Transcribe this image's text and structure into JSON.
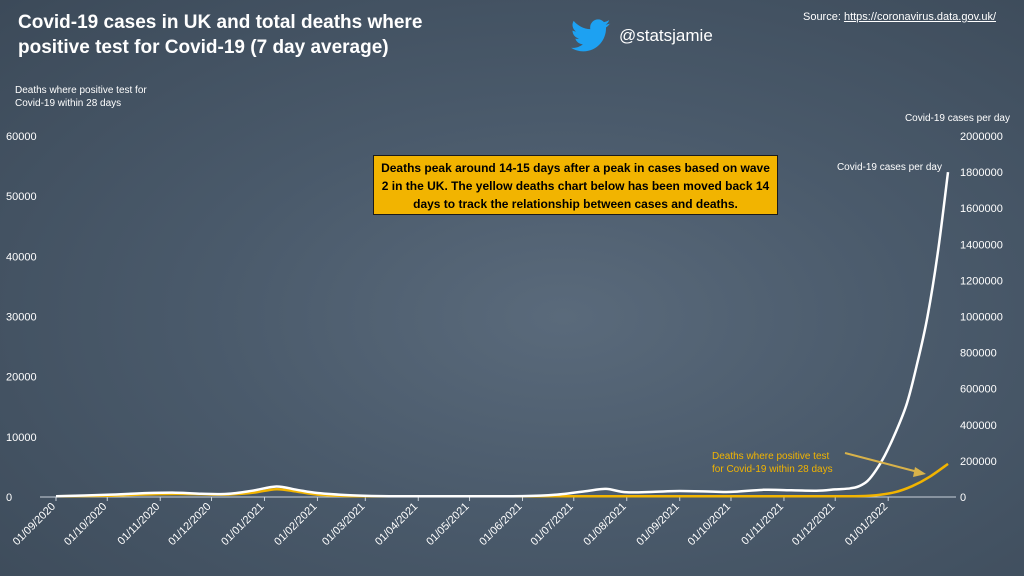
{
  "title": "Covid-19 cases in UK and total deaths where positive test for Covid-19 (7 day average)",
  "source": {
    "prefix": "Source: ",
    "url_text": "https://coronavirus.data.gov.uk/"
  },
  "twitter_handle": "@statsjamie",
  "annotation": "Deaths peak around 14-15 days after a peak in cases based on wave 2 in the UK. The yellow deaths chart below has been moved back 14 days to track the relationship between cases and deaths.",
  "colors": {
    "cases": "#ffffff",
    "deaths": "#f2b400",
    "background": "#4a5a6b",
    "twitter": "#1da1f2"
  },
  "chart_data": {
    "type": "line",
    "y_left_label": "Deaths where positive test for Covid-19 within 28 days",
    "y_right_label": "Covid-19 cases per day",
    "y_left_range": [
      0,
      60000
    ],
    "y_right_range": [
      0,
      2000000
    ],
    "y_left_ticks": [
      "0",
      "10000",
      "20000",
      "30000",
      "40000",
      "50000",
      "60000"
    ],
    "y_right_ticks": [
      "0",
      "200000",
      "400000",
      "600000",
      "800000",
      "1000000",
      "1200000",
      "1400000",
      "1600000",
      "1800000",
      "2000000"
    ],
    "x_ticks": [
      "01/09/2020",
      "01/10/2020",
      "01/11/2020",
      "01/12/2020",
      "01/01/2021",
      "01/02/2021",
      "01/03/2021",
      "01/04/2021",
      "01/05/2021",
      "01/06/2021",
      "01/07/2021",
      "01/08/2021",
      "01/09/2021",
      "01/10/2021",
      "01/11/2021",
      "01/12/2021",
      "01/01/2022"
    ],
    "series": [
      {
        "name": "Covid-19 cases per day",
        "axis": "right",
        "points": [
          [
            "2020-09-01",
            2000
          ],
          [
            "2020-10-01",
            12000
          ],
          [
            "2020-10-20",
            20000
          ],
          [
            "2020-11-10",
            24000
          ],
          [
            "2020-11-25",
            18000
          ],
          [
            "2020-12-10",
            17000
          ],
          [
            "2020-12-25",
            35000
          ],
          [
            "2021-01-08",
            58000
          ],
          [
            "2021-01-20",
            40000
          ],
          [
            "2021-02-01",
            22000
          ],
          [
            "2021-02-20",
            10000
          ],
          [
            "2021-03-10",
            5000
          ],
          [
            "2021-04-01",
            3000
          ],
          [
            "2021-05-01",
            2000
          ],
          [
            "2021-06-01",
            5000
          ],
          [
            "2021-06-20",
            12000
          ],
          [
            "2021-07-10",
            35000
          ],
          [
            "2021-07-20",
            45000
          ],
          [
            "2021-08-01",
            26000
          ],
          [
            "2021-08-20",
            30000
          ],
          [
            "2021-09-01",
            33000
          ],
          [
            "2021-09-20",
            30000
          ],
          [
            "2021-10-01",
            28000
          ],
          [
            "2021-10-20",
            40000
          ],
          [
            "2021-11-01",
            38000
          ],
          [
            "2021-11-20",
            35000
          ],
          [
            "2021-12-01",
            42000
          ],
          [
            "2021-12-10",
            48000
          ],
          [
            "2021-12-15",
            60000
          ],
          [
            "2021-12-20",
            90000
          ],
          [
            "2021-12-25",
            150000
          ],
          [
            "2021-12-30",
            230000
          ],
          [
            "2022-01-05",
            350000
          ],
          [
            "2022-01-12",
            520000
          ],
          [
            "2022-01-18",
            740000
          ],
          [
            "2022-01-24",
            1000000
          ],
          [
            "2022-01-30",
            1350000
          ],
          [
            "2022-02-05",
            1800000
          ]
        ]
      },
      {
        "name": "Deaths where positive test for Covid-19 within 28 days",
        "axis": "left",
        "label_text": "Deaths where positive test for Covid-19 within 28 days",
        "points": [
          [
            "2020-09-01",
            50
          ],
          [
            "2020-10-01",
            200
          ],
          [
            "2020-10-20",
            400
          ],
          [
            "2020-11-10",
            500
          ],
          [
            "2020-11-25",
            450
          ],
          [
            "2020-12-10",
            400
          ],
          [
            "2020-12-25",
            700
          ],
          [
            "2021-01-08",
            1300
          ],
          [
            "2021-01-20",
            900
          ],
          [
            "2021-02-01",
            400
          ],
          [
            "2021-02-20",
            150
          ],
          [
            "2021-03-10",
            60
          ],
          [
            "2021-04-01",
            30
          ],
          [
            "2021-05-01",
            10
          ],
          [
            "2021-06-01",
            10
          ],
          [
            "2021-07-01",
            20
          ],
          [
            "2021-08-01",
            50
          ],
          [
            "2021-09-01",
            100
          ],
          [
            "2021-10-01",
            120
          ],
          [
            "2021-11-01",
            140
          ],
          [
            "2021-12-01",
            130
          ],
          [
            "2021-12-15",
            150
          ],
          [
            "2021-12-25",
            300
          ],
          [
            "2022-01-05",
            800
          ],
          [
            "2022-01-15",
            1800
          ],
          [
            "2022-01-25",
            3300
          ],
          [
            "2022-02-05",
            5500
          ]
        ]
      }
    ]
  }
}
